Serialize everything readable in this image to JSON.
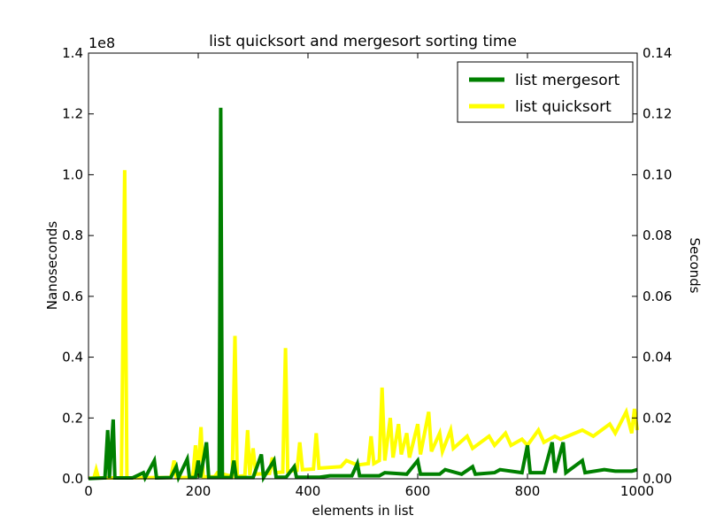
{
  "chart_data": {
    "type": "line",
    "title": "list quicksort and mergesort sorting time",
    "xlabel": "elements in list",
    "ylabel": "Nanoseconds",
    "y2label": "Seconds",
    "offset_text": "1e8",
    "xlim": [
      0,
      1000
    ],
    "ylim": [
      0,
      140000000
    ],
    "y2lim": [
      0,
      0.14
    ],
    "xticks": [
      0,
      200,
      400,
      600,
      800,
      1000
    ],
    "xtick_labels": [
      "0",
      "200",
      "400",
      "600",
      "800",
      "1000"
    ],
    "yticks": [
      0,
      20000000,
      40000000,
      60000000,
      80000000,
      100000000,
      120000000,
      140000000
    ],
    "ytick_labels": [
      "0.0",
      "0.2",
      "0.4",
      "0.6",
      "0.8",
      "1.0",
      "1.2",
      "1.4"
    ],
    "y2ticks": [
      0,
      0.02,
      0.04,
      0.06,
      0.08,
      0.1,
      0.12,
      0.14
    ],
    "y2tick_labels": [
      "0.00",
      "0.02",
      "0.04",
      "0.06",
      "0.08",
      "0.10",
      "0.12",
      "0.14"
    ],
    "grid": false,
    "legend_position": "top-right",
    "series": [
      {
        "name": "list mergesort",
        "color": "#008000",
        "points": [
          [
            0,
            100000
          ],
          [
            30,
            300000
          ],
          [
            35,
            16000000
          ],
          [
            38,
            300000
          ],
          [
            45,
            19500000
          ],
          [
            48,
            300000
          ],
          [
            80,
            300000
          ],
          [
            100,
            2000000
          ],
          [
            103,
            300000
          ],
          [
            120,
            6000000
          ],
          [
            124,
            300000
          ],
          [
            150,
            400000
          ],
          [
            160,
            4000000
          ],
          [
            164,
            400000
          ],
          [
            180,
            6500000
          ],
          [
            184,
            400000
          ],
          [
            195,
            400000
          ],
          [
            200,
            6000000
          ],
          [
            204,
            400000
          ],
          [
            215,
            12000000
          ],
          [
            219,
            400000
          ],
          [
            238,
            400000
          ],
          [
            241,
            122000000
          ],
          [
            244,
            400000
          ],
          [
            260,
            400000
          ],
          [
            265,
            6000000
          ],
          [
            269,
            400000
          ],
          [
            300,
            400000
          ],
          [
            315,
            8000000
          ],
          [
            319,
            400000
          ],
          [
            338,
            6000000
          ],
          [
            342,
            500000
          ],
          [
            360,
            500000
          ],
          [
            375,
            4000000
          ],
          [
            379,
            500000
          ],
          [
            420,
            500000
          ],
          [
            440,
            1000000
          ],
          [
            480,
            1000000
          ],
          [
            490,
            5000000
          ],
          [
            494,
            1000000
          ],
          [
            530,
            1000000
          ],
          [
            540,
            2000000
          ],
          [
            580,
            1500000
          ],
          [
            600,
            6000000
          ],
          [
            605,
            1500000
          ],
          [
            640,
            1500000
          ],
          [
            650,
            3000000
          ],
          [
            680,
            1500000
          ],
          [
            700,
            4000000
          ],
          [
            705,
            1500000
          ],
          [
            740,
            2000000
          ],
          [
            750,
            3000000
          ],
          [
            790,
            2000000
          ],
          [
            800,
            11000000
          ],
          [
            805,
            2000000
          ],
          [
            830,
            2000000
          ],
          [
            845,
            12000000
          ],
          [
            850,
            2000000
          ],
          [
            865,
            12000000
          ],
          [
            870,
            2000000
          ],
          [
            900,
            6000000
          ],
          [
            905,
            2000000
          ],
          [
            940,
            3000000
          ],
          [
            960,
            2500000
          ],
          [
            990,
            2500000
          ],
          [
            1000,
            3000000
          ]
        ]
      },
      {
        "name": "list quicksort",
        "color": "#ffff00",
        "points": [
          [
            0,
            200000
          ],
          [
            10,
            300000
          ],
          [
            14,
            3000000
          ],
          [
            18,
            300000
          ],
          [
            60,
            300000
          ],
          [
            66,
            101500000
          ],
          [
            70,
            300000
          ],
          [
            120,
            400000
          ],
          [
            150,
            400000
          ],
          [
            156,
            6000000
          ],
          [
            160,
            400000
          ],
          [
            190,
            400000
          ],
          [
            195,
            11000000
          ],
          [
            199,
            600000
          ],
          [
            205,
            17000000
          ],
          [
            209,
            600000
          ],
          [
            230,
            700000
          ],
          [
            235,
            2000000
          ],
          [
            262,
            800000
          ],
          [
            267,
            47000000
          ],
          [
            271,
            800000
          ],
          [
            285,
            1000000
          ],
          [
            290,
            16000000
          ],
          [
            294,
            1200000
          ],
          [
            300,
            10000000
          ],
          [
            305,
            1500000
          ],
          [
            330,
            1800000
          ],
          [
            335,
            7000000
          ],
          [
            340,
            2000000
          ],
          [
            354,
            2200000
          ],
          [
            359,
            43000000
          ],
          [
            363,
            2500000
          ],
          [
            380,
            2800000
          ],
          [
            385,
            12000000
          ],
          [
            390,
            3000000
          ],
          [
            410,
            3200000
          ],
          [
            415,
            15000000
          ],
          [
            420,
            3500000
          ],
          [
            460,
            4000000
          ],
          [
            470,
            6000000
          ],
          [
            490,
            4500000
          ],
          [
            510,
            5000000
          ],
          [
            515,
            14000000
          ],
          [
            520,
            5000000
          ],
          [
            530,
            6000000
          ],
          [
            535,
            30000000
          ],
          [
            540,
            6000000
          ],
          [
            550,
            20000000
          ],
          [
            555,
            7000000
          ],
          [
            565,
            18000000
          ],
          [
            570,
            8000000
          ],
          [
            580,
            15000000
          ],
          [
            585,
            7000000
          ],
          [
            600,
            18000000
          ],
          [
            605,
            8000000
          ],
          [
            620,
            22000000
          ],
          [
            625,
            9000000
          ],
          [
            640,
            15000000
          ],
          [
            645,
            9000000
          ],
          [
            660,
            16000000
          ],
          [
            665,
            10000000
          ],
          [
            690,
            14000000
          ],
          [
            700,
            10000000
          ],
          [
            730,
            14000000
          ],
          [
            740,
            11000000
          ],
          [
            760,
            15000000
          ],
          [
            770,
            11000000
          ],
          [
            790,
            13000000
          ],
          [
            800,
            11000000
          ],
          [
            820,
            16000000
          ],
          [
            830,
            12000000
          ],
          [
            850,
            14000000
          ],
          [
            860,
            13000000
          ],
          [
            900,
            16000000
          ],
          [
            920,
            14000000
          ],
          [
            950,
            18000000
          ],
          [
            960,
            15000000
          ],
          [
            980,
            22000000
          ],
          [
            990,
            15000000
          ],
          [
            995,
            23000000
          ],
          [
            1000,
            16000000
          ]
        ]
      }
    ]
  }
}
